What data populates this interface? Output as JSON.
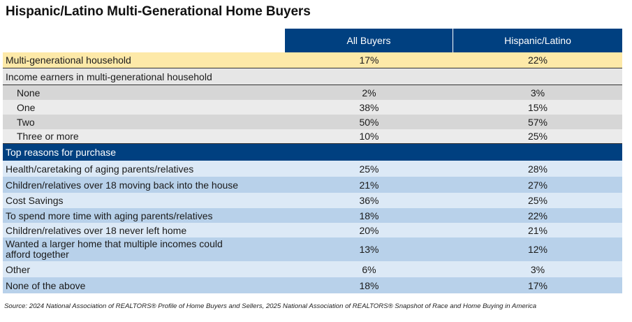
{
  "title": "Hispanic/Latino Multi-Generational Home Buyers",
  "columns": [
    "All Buyers",
    "Hispanic/Latino"
  ],
  "multigen": {
    "label": "Multi-generational household",
    "all": "17%",
    "hispanic": "22%"
  },
  "income_section": {
    "label": "Income earners in multi-generational household"
  },
  "income_rows": [
    {
      "label": "None",
      "all": "2%",
      "hispanic": "3%"
    },
    {
      "label": "One",
      "all": "38%",
      "hispanic": "15%"
    },
    {
      "label": "Two",
      "all": "50%",
      "hispanic": "57%"
    },
    {
      "label": "Three or more",
      "all": "10%",
      "hispanic": "25%"
    }
  ],
  "reasons_section": {
    "label": "Top reasons for purchase"
  },
  "reason_rows": [
    {
      "label": "Health/caretaking of aging parents/relatives",
      "all": "25%",
      "hispanic": "28%"
    },
    {
      "label": "Children/relatives over 18 moving back into the house",
      "all": "21%",
      "hispanic": "27%"
    },
    {
      "label": "Cost Savings",
      "all": "36%",
      "hispanic": "25%"
    },
    {
      "label": "To spend more time with aging parents/relatives",
      "all": "18%",
      "hispanic": "22%"
    },
    {
      "label": "Children/relatives over 18 never left home",
      "all": "20%",
      "hispanic": "21%"
    },
    {
      "label": "Wanted a larger home that multiple incomes could afford together",
      "all": "13%",
      "hispanic": "12%"
    },
    {
      "label": "Other",
      "all": "6%",
      "hispanic": "3%"
    },
    {
      "label": "None of the above",
      "all": "18%",
      "hispanic": "17%"
    }
  ],
  "source": "Source: 2024 National Association of REALTORS® Profile of Home Buyers and Sellers, 2025 National Association of REALTORS® Snapshot of Race and Home Buying in America"
}
